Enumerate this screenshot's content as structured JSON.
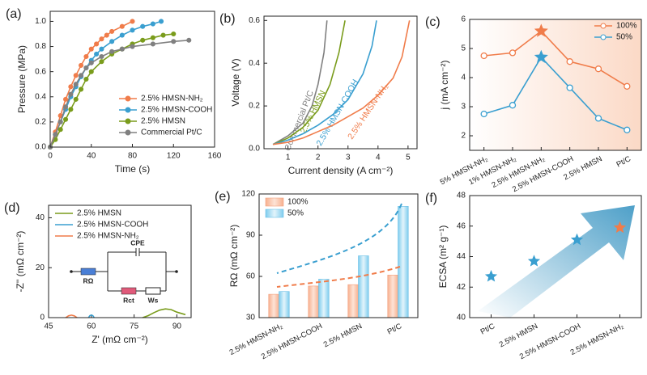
{
  "chart_data": [
    {
      "type": "line",
      "panel": "(a)",
      "x_label": "Time (s)",
      "y_label": "Pressure (MPa)",
      "xlim": [
        0,
        160
      ],
      "ylim": [
        0,
        1.08
      ],
      "xticks": [
        0,
        40,
        80,
        120,
        160
      ],
      "yticks": [
        {
          "value": 0,
          "label": "0.0"
        },
        {
          "value": 0.2,
          "label": "0.2"
        },
        {
          "value": 0.4,
          "label": "0.4"
        },
        {
          "value": 0.6,
          "label": "0.6"
        },
        {
          "value": 0.8,
          "label": "0.8"
        },
        {
          "value": 1,
          "label": "1.0"
        }
      ],
      "legend": "lower right",
      "markers": true,
      "series": [
        {
          "name": "2.5% HMSN-NH₂",
          "color": "#f07c4a",
          "x": [
            0,
            5,
            10,
            15,
            20,
            25,
            30,
            35,
            40,
            45,
            50,
            55,
            60,
            70,
            80
          ],
          "values": [
            0,
            0.12,
            0.25,
            0.38,
            0.48,
            0.57,
            0.65,
            0.72,
            0.78,
            0.82,
            0.86,
            0.89,
            0.92,
            0.96,
            1.0
          ]
        },
        {
          "name": "2.5% HMSN-COOH",
          "color": "#3a9fd0",
          "x": [
            0,
            5,
            10,
            15,
            20,
            25,
            30,
            35,
            40,
            45,
            50,
            60,
            70,
            80,
            90,
            100,
            108
          ],
          "values": [
            0,
            0.1,
            0.2,
            0.3,
            0.4,
            0.48,
            0.56,
            0.63,
            0.69,
            0.74,
            0.78,
            0.84,
            0.89,
            0.93,
            0.96,
            0.98,
            1.0
          ]
        },
        {
          "name": "2.5% HMSN",
          "color": "#7a9c1c",
          "x": [
            0,
            5,
            10,
            15,
            20,
            25,
            30,
            35,
            40,
            50,
            60,
            70,
            80,
            90,
            100,
            110,
            120
          ],
          "values": [
            0,
            0.06,
            0.14,
            0.22,
            0.3,
            0.38,
            0.46,
            0.54,
            0.6,
            0.68,
            0.74,
            0.78,
            0.82,
            0.85,
            0.87,
            0.89,
            0.9
          ]
        },
        {
          "name": "Commercial Pt/C",
          "color": "#808080",
          "x": [
            0,
            5,
            10,
            15,
            20,
            25,
            30,
            35,
            40,
            50,
            60,
            70,
            80,
            100,
            120,
            135
          ],
          "values": [
            0,
            0.1,
            0.2,
            0.32,
            0.42,
            0.5,
            0.57,
            0.63,
            0.67,
            0.72,
            0.76,
            0.78,
            0.8,
            0.82,
            0.84,
            0.85
          ]
        }
      ]
    },
    {
      "type": "line",
      "panel": "(b)",
      "x_label": "Current density (A cm⁻²)",
      "y_label": "Voltage (V)",
      "xlim": [
        0.2,
        5.3
      ],
      "ylim": [
        0,
        0.62
      ],
      "xticks": [
        1,
        2,
        3,
        4,
        5
      ],
      "yticks": [
        {
          "value": 0,
          "label": "0.0"
        },
        {
          "value": 0.2,
          "label": "0.2"
        },
        {
          "value": 0.4,
          "label": "0.4"
        },
        {
          "value": 0.6,
          "label": "0.6"
        }
      ],
      "legend": "inline",
      "markers": false,
      "series": [
        {
          "name": "Commercial Pt/C",
          "color": "#808080",
          "x": [
            0.5,
            1,
            1.5,
            1.8,
            2.0,
            2.2,
            2.3
          ],
          "values": [
            0.02,
            0.06,
            0.12,
            0.2,
            0.3,
            0.45,
            0.6
          ]
        },
        {
          "name": "2.5% HMSN",
          "color": "#7a9c1c",
          "x": [
            0.5,
            1,
            1.5,
            2,
            2.4,
            2.7,
            2.9
          ],
          "values": [
            0.02,
            0.05,
            0.1,
            0.18,
            0.3,
            0.45,
            0.6
          ]
        },
        {
          "name": "2.5% HMSN-COOH",
          "color": "#3a9fd0",
          "x": [
            0.5,
            1,
            1.5,
            2,
            2.5,
            3,
            3.5,
            3.8,
            3.95
          ],
          "values": [
            0.02,
            0.04,
            0.07,
            0.11,
            0.16,
            0.23,
            0.35,
            0.48,
            0.6
          ]
        },
        {
          "name": "2.5% HMSN-NH₂",
          "color": "#f07c4a",
          "x": [
            0.5,
            1,
            1.5,
            2,
            2.5,
            3,
            3.5,
            4,
            4.5,
            4.8,
            5.05
          ],
          "values": [
            0.02,
            0.03,
            0.05,
            0.08,
            0.11,
            0.15,
            0.19,
            0.25,
            0.33,
            0.43,
            0.6
          ]
        }
      ]
    },
    {
      "type": "line",
      "panel": "(c)",
      "y_label": "j (mA cm⁻²)",
      "ylim": [
        1.5,
        6
      ],
      "yticks": [
        2,
        3,
        4,
        5,
        6
      ],
      "legend": "upper right",
      "markers": true,
      "star_index": 2,
      "categories": [
        "5% HMSN-NH₂",
        "1% HMSN-NH₂",
        "2.5% HMSN-NH₂",
        "2.5% HMSN-COOH",
        "2.5% HMSN",
        "Pt/C"
      ],
      "series": [
        {
          "name": "100%",
          "color": "#f07c4a",
          "values": [
            4.75,
            4.85,
            5.6,
            4.55,
            4.3,
            3.7
          ]
        },
        {
          "name": "50%",
          "color": "#3a9fd0",
          "values": [
            2.75,
            3.05,
            4.7,
            3.65,
            2.6,
            2.2
          ]
        }
      ]
    },
    {
      "type": "line",
      "panel": "(d)",
      "x_label": "Z' (mΩ cm⁻²)",
      "y_label": "-Z'' (mΩ cm⁻²)",
      "xlim": [
        45,
        95
      ],
      "ylim": [
        0,
        45
      ],
      "xticks": [
        45,
        60,
        75,
        90
      ],
      "yticks": [
        0,
        20,
        40
      ],
      "legend": "upper left",
      "markers": false,
      "circuit_labels": [
        "CPE",
        "RΩ",
        "Rct",
        "Ws"
      ],
      "series": [
        {
          "name": "2.5% HMSN",
          "color": "#7a9c1c",
          "x": [
            78,
            80,
            82,
            84,
            86,
            88,
            90,
            93
          ],
          "values": [
            0,
            0.8,
            2,
            3,
            3.5,
            3.2,
            2.2,
            1.2
          ]
        },
        {
          "name": "2.5% HMSN-COOH",
          "color": "#3a9fd0",
          "x": [
            59,
            59.5,
            60,
            60.5,
            61
          ],
          "values": [
            0,
            0.8,
            1,
            0.8,
            0
          ]
        },
        {
          "name": "2.5% HMSN-NH₂",
          "color": "#f07c4a",
          "x": [
            51,
            52,
            53,
            54,
            55
          ],
          "values": [
            0,
            0.7,
            1,
            0.7,
            0
          ]
        }
      ]
    },
    {
      "type": "bar",
      "panel": "(e)",
      "y_label": "RΩ (mΩ cm⁻²)",
      "ylim": [
        30,
        120
      ],
      "yticks": [
        30,
        60,
        90,
        120
      ],
      "legend": "upper left",
      "categories": [
        "2.5% HMSN-NH₂",
        "2.5% HMSN-COOH",
        "2.5% HMSN",
        "Pt/C"
      ],
      "series": [
        {
          "name": "100%",
          "color": "#f2a07e",
          "values": [
            47,
            53,
            54,
            61
          ]
        },
        {
          "name": "50%",
          "color": "#6cc0e6",
          "values": [
            49,
            58,
            75,
            111
          ]
        }
      ]
    },
    {
      "type": "scatter",
      "panel": "(f)",
      "y_label": "ECSA (m² g⁻¹)",
      "ylim": [
        40,
        48
      ],
      "yticks": [
        40,
        42,
        44,
        46,
        48
      ],
      "categories": [
        "Pt/C",
        "2.5% HMSN",
        "2.5% HMSN-COOH",
        "2.5% HMSN-NH₂"
      ],
      "values": [
        42.7,
        43.7,
        45.1,
        45.9
      ],
      "colors": [
        "#3a9fd0",
        "#3a9fd0",
        "#3a9fd0",
        "#f07c4a"
      ]
    }
  ]
}
